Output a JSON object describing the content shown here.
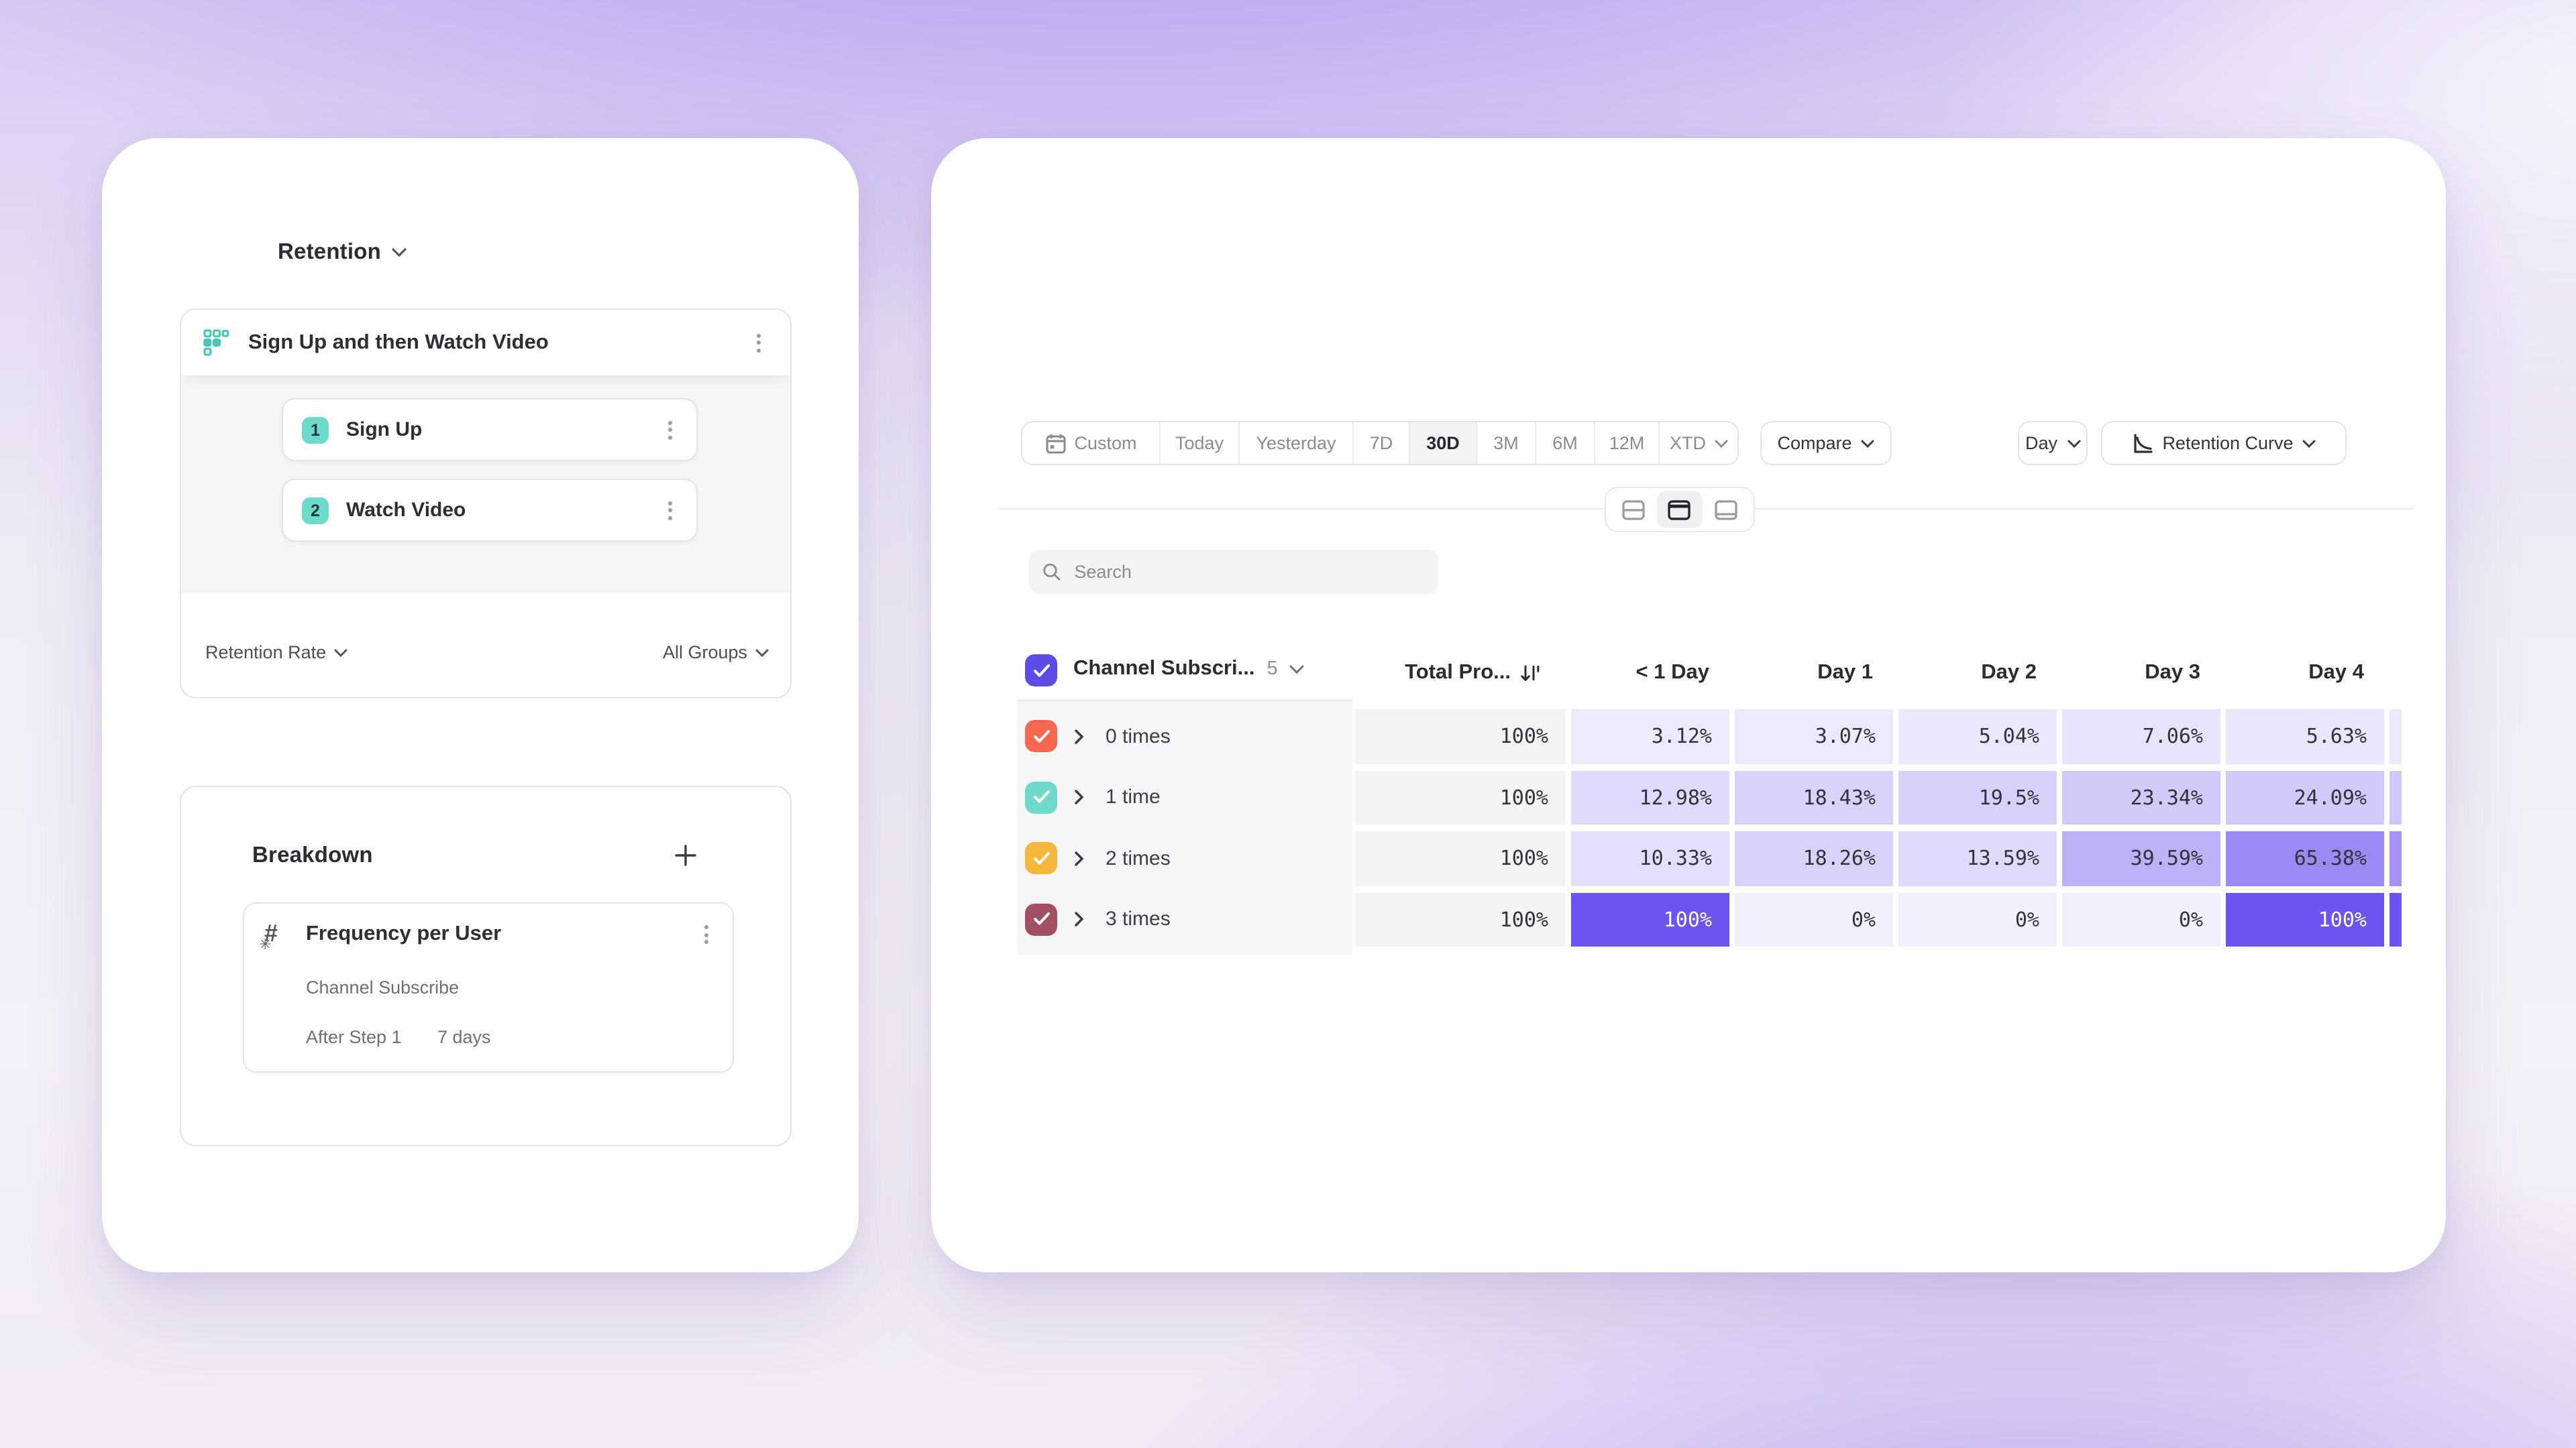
{
  "left_panel": {
    "title": "Retention",
    "funnel": {
      "title": "Sign Up and then Watch Video",
      "steps": [
        {
          "num": "1",
          "label": "Sign Up"
        },
        {
          "num": "2",
          "label": "Watch Video"
        }
      ],
      "metric_label": "Retention Rate",
      "group_label": "All Groups"
    },
    "breakdown": {
      "title": "Breakdown",
      "item": {
        "title": "Frequency per User",
        "property": "Channel Subscribe",
        "after_step_label": "After Step 1",
        "window_label": "7 days"
      }
    }
  },
  "toolbar": {
    "presets": [
      {
        "label": "Custom",
        "calendar_icon": true,
        "width": 103
      },
      {
        "label": "Today",
        "width": 59
      },
      {
        "label": "Yesterday",
        "width": 85
      },
      {
        "label": "7D",
        "width": 42
      },
      {
        "label": "30D",
        "selected": true,
        "width": 50
      },
      {
        "label": "3M",
        "width": 44
      },
      {
        "label": "6M",
        "width": 44
      },
      {
        "label": "12M",
        "width": 48
      },
      {
        "label": "XTD",
        "chevron": true,
        "width": 58
      }
    ],
    "compare_label": "Compare",
    "granularity_label": "Day",
    "chart_type_label": "Retention Curve",
    "view_toggle_selected_index": 1
  },
  "search": {
    "placeholder": "Search"
  },
  "table": {
    "group_label": "Channel Subscri...",
    "group_count": "5",
    "total_column_label": "Total Pro...",
    "day_columns": [
      "< 1 Day",
      "Day 1",
      "Day 2",
      "Day 3",
      "Day 4"
    ],
    "rows": [
      {
        "label": "0 times",
        "checkbox_color": "#F8684E",
        "total": "100%",
        "cells": [
          "3.12%",
          "3.07%",
          "5.04%",
          "7.06%",
          "5.63%"
        ],
        "peek_color": "#eeeafd"
      },
      {
        "label": "1 time",
        "checkbox_color": "#6FD9CB",
        "total": "100%",
        "cells": [
          "12.98%",
          "18.43%",
          "19.5%",
          "23.34%",
          "24.09%"
        ],
        "peek_color": "#d2c7f9"
      },
      {
        "label": "2 times",
        "checkbox_color": "#F6B73C",
        "total": "100%",
        "cells": [
          "10.33%",
          "18.26%",
          "13.59%",
          "39.59%",
          "65.38%"
        ],
        "peek_color": "#a692f4"
      },
      {
        "label": "3 times",
        "checkbox_color": "#A35064",
        "total": "100%",
        "cells": [
          "100%",
          "0%",
          "0%",
          "0%",
          "100%"
        ],
        "peek_color": "#6b54ef"
      }
    ],
    "colors": {
      "heat_low": "#f2effe",
      "heat_high": "#6b54ef",
      "header_checkbox": "#5c4ee4",
      "total_cell_bg": "#f4f4f5",
      "label_band_bg": "#f6f6f8",
      "accent_teal": "#6edacb"
    }
  }
}
